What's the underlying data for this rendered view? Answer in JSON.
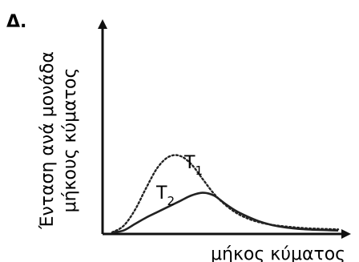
{
  "panel_label": "Δ.",
  "chart_data": {
    "type": "line",
    "title": "",
    "xlabel": "μήκος κύματος",
    "ylabel_lines": [
      "Ένταση ανά μονάδα",
      "μήκους κύματος"
    ],
    "xlim": [
      0,
      10
    ],
    "ylim": [
      0,
      10
    ],
    "grid": false,
    "series": [
      {
        "name": "T",
        "name_sub": "1",
        "style": "dotted",
        "color": "#222222",
        "x": [
          0.0,
          0.5,
          1.0,
          1.5,
          2.0,
          2.5,
          3.0,
          3.5,
          4.0,
          4.5,
          5.0,
          5.5,
          6.0,
          6.5,
          7.0,
          7.5,
          8.0,
          8.5,
          9.0,
          9.5,
          10.0
        ],
        "y": [
          0.0,
          0.35,
          1.2,
          2.4,
          3.5,
          4.1,
          4.15,
          3.7,
          2.9,
          2.1,
          1.5,
          1.05,
          0.75,
          0.55,
          0.42,
          0.34,
          0.28,
          0.23,
          0.2,
          0.18,
          0.16
        ]
      },
      {
        "name": "T",
        "name_sub": "2",
        "style": "solid",
        "color": "#222222",
        "x": [
          0.0,
          0.5,
          1.0,
          1.5,
          2.0,
          2.5,
          3.0,
          3.5,
          4.0,
          4.5,
          5.0,
          5.5,
          6.0,
          6.5,
          7.0,
          7.5,
          8.0,
          8.5,
          9.0,
          9.5,
          10.0
        ],
        "y": [
          0.0,
          0.1,
          0.45,
          0.8,
          1.1,
          1.4,
          1.7,
          2.0,
          2.15,
          2.0,
          1.55,
          1.15,
          0.85,
          0.6,
          0.42,
          0.3,
          0.22,
          0.17,
          0.14,
          0.12,
          0.1
        ]
      }
    ]
  }
}
